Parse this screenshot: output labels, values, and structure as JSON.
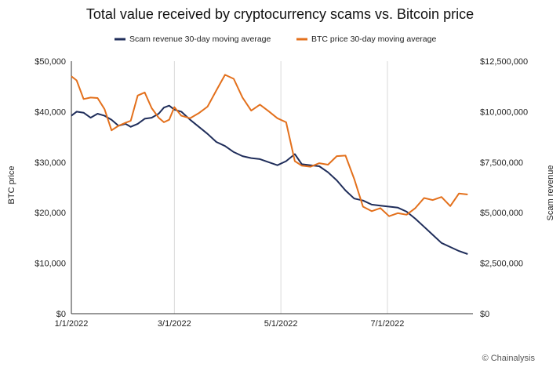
{
  "chart_data": {
    "type": "line",
    "title": "Total value received by cryptocurrency scams vs. Bitcoin price",
    "ylabel_left": "BTC price",
    "ylabel_right": "Scam revenue",
    "credit": "© Chainalysis",
    "x_ticks": [
      "1/1/2022",
      "3/1/2022",
      "5/1/2022",
      "7/1/2022"
    ],
    "x_range": [
      "2022-01-01",
      "2022-08-19"
    ],
    "y_left": {
      "range": [
        0,
        50000
      ],
      "ticks": [
        0,
        10000,
        20000,
        30000,
        40000,
        50000
      ],
      "tick_labels": [
        "$0",
        "$10,000",
        "$20,000",
        "$30,000",
        "$40,000",
        "$50,000"
      ]
    },
    "y_right": {
      "range": [
        0,
        12500000
      ],
      "ticks": [
        0,
        2500000,
        5000000,
        7500000,
        10000000,
        12500000
      ],
      "tick_labels": [
        "$0",
        "$2,500,000",
        "$5,000,000",
        "$7,500,000",
        "$10,000,000",
        "$12,500,000"
      ]
    },
    "grid": "vertical",
    "legend_position": "top",
    "series": [
      {
        "name": "Scam revenue 30-day moving average",
        "axis": "right",
        "color": "#1f2d5a",
        "points": [
          [
            "2022-01-01",
            9800000
          ],
          [
            "2022-01-04",
            10000000
          ],
          [
            "2022-01-08",
            9950000
          ],
          [
            "2022-01-12",
            9700000
          ],
          [
            "2022-01-16",
            9900000
          ],
          [
            "2022-01-20",
            9800000
          ],
          [
            "2022-01-24",
            9600000
          ],
          [
            "2022-01-28",
            9300000
          ],
          [
            "2022-02-01",
            9400000
          ],
          [
            "2022-02-04",
            9250000
          ],
          [
            "2022-02-08",
            9400000
          ],
          [
            "2022-02-12",
            9650000
          ],
          [
            "2022-02-16",
            9700000
          ],
          [
            "2022-02-20",
            9900000
          ],
          [
            "2022-02-23",
            10200000
          ],
          [
            "2022-02-26",
            10300000
          ],
          [
            "2022-03-01",
            10100000
          ],
          [
            "2022-03-05",
            10000000
          ],
          [
            "2022-03-10",
            9600000
          ],
          [
            "2022-03-15",
            9250000
          ],
          [
            "2022-03-20",
            8900000
          ],
          [
            "2022-03-25",
            8500000
          ],
          [
            "2022-03-30",
            8300000
          ],
          [
            "2022-04-04",
            8000000
          ],
          [
            "2022-04-09",
            7800000
          ],
          [
            "2022-04-14",
            7700000
          ],
          [
            "2022-04-19",
            7650000
          ],
          [
            "2022-04-24",
            7500000
          ],
          [
            "2022-04-29",
            7350000
          ],
          [
            "2022-05-04",
            7550000
          ],
          [
            "2022-05-09",
            7900000
          ],
          [
            "2022-05-13",
            7400000
          ],
          [
            "2022-05-18",
            7350000
          ],
          [
            "2022-05-23",
            7300000
          ],
          [
            "2022-05-28",
            7000000
          ],
          [
            "2022-06-02",
            6600000
          ],
          [
            "2022-06-07",
            6100000
          ],
          [
            "2022-06-12",
            5700000
          ],
          [
            "2022-06-17",
            5600000
          ],
          [
            "2022-06-22",
            5400000
          ],
          [
            "2022-06-27",
            5350000
          ],
          [
            "2022-07-02",
            5300000
          ],
          [
            "2022-07-07",
            5250000
          ],
          [
            "2022-07-12",
            5050000
          ],
          [
            "2022-07-17",
            4700000
          ],
          [
            "2022-07-22",
            4300000
          ],
          [
            "2022-07-27",
            3900000
          ],
          [
            "2022-08-01",
            3500000
          ],
          [
            "2022-08-06",
            3300000
          ],
          [
            "2022-08-11",
            3100000
          ],
          [
            "2022-08-16",
            2950000
          ]
        ]
      },
      {
        "name": "BTC price 30-day moving average",
        "axis": "left",
        "color": "#e3701c",
        "points": [
          [
            "2022-01-01",
            47000
          ],
          [
            "2022-01-04",
            46200
          ],
          [
            "2022-01-08",
            42500
          ],
          [
            "2022-01-12",
            42800
          ],
          [
            "2022-01-16",
            42700
          ],
          [
            "2022-01-20",
            40500
          ],
          [
            "2022-01-24",
            36300
          ],
          [
            "2022-01-28",
            37200
          ],
          [
            "2022-02-01",
            37800
          ],
          [
            "2022-02-04",
            38200
          ],
          [
            "2022-02-08",
            43200
          ],
          [
            "2022-02-12",
            43800
          ],
          [
            "2022-02-16",
            40700
          ],
          [
            "2022-02-20",
            38800
          ],
          [
            "2022-02-23",
            37900
          ],
          [
            "2022-02-26",
            38400
          ],
          [
            "2022-03-01",
            40900
          ],
          [
            "2022-03-05",
            39200
          ],
          [
            "2022-03-10",
            38700
          ],
          [
            "2022-03-15",
            39700
          ],
          [
            "2022-03-20",
            41000
          ],
          [
            "2022-03-25",
            44200
          ],
          [
            "2022-03-30",
            47300
          ],
          [
            "2022-04-04",
            46500
          ],
          [
            "2022-04-09",
            42800
          ],
          [
            "2022-04-14",
            40200
          ],
          [
            "2022-04-19",
            41400
          ],
          [
            "2022-04-24",
            40100
          ],
          [
            "2022-04-29",
            38700
          ],
          [
            "2022-05-04",
            37900
          ],
          [
            "2022-05-09",
            30200
          ],
          [
            "2022-05-13",
            29300
          ],
          [
            "2022-05-18",
            29100
          ],
          [
            "2022-05-23",
            29800
          ],
          [
            "2022-05-28",
            29500
          ],
          [
            "2022-06-02",
            31200
          ],
          [
            "2022-06-07",
            31300
          ],
          [
            "2022-06-12",
            26700
          ],
          [
            "2022-06-17",
            21200
          ],
          [
            "2022-06-22",
            20300
          ],
          [
            "2022-06-27",
            20900
          ],
          [
            "2022-07-02",
            19300
          ],
          [
            "2022-07-07",
            19900
          ],
          [
            "2022-07-12",
            19600
          ],
          [
            "2022-07-17",
            20900
          ],
          [
            "2022-07-22",
            22900
          ],
          [
            "2022-07-27",
            22500
          ],
          [
            "2022-08-01",
            23100
          ],
          [
            "2022-08-06",
            21300
          ],
          [
            "2022-08-11",
            23800
          ],
          [
            "2022-08-16",
            23600
          ]
        ]
      }
    ]
  }
}
